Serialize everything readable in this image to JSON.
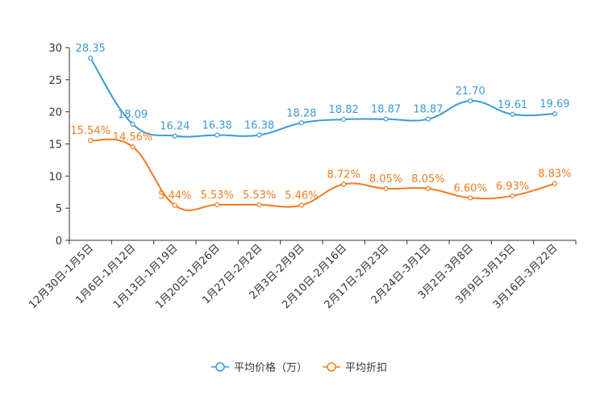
{
  "chart_data": {
    "type": "line",
    "categories": [
      "12月30日-1月5日",
      "1月6日-1月12日",
      "1月13日-1月19日",
      "1月20日-1月26日",
      "1月27日-2月2日",
      "2月3日-2月9日",
      "2月10日-2月16日",
      "2月17日-2月23日",
      "2月24日-3月1日",
      "3月2日-3月8日",
      "3月9日-3月15日",
      "3月16日-3月22日"
    ],
    "yticks": [
      "0",
      "5",
      "10",
      "15",
      "20",
      "25",
      "30"
    ],
    "ylim": [
      0,
      30
    ],
    "series": [
      {
        "name": "平均价格（万）",
        "color": "#3a9ad9",
        "values": [
          28.35,
          18.09,
          16.24,
          16.38,
          16.38,
          18.28,
          18.82,
          18.87,
          18.87,
          21.7,
          19.61,
          19.69
        ],
        "labels": [
          "28.35",
          "18.09",
          "16.24",
          "16.38",
          "16.38",
          "18.28",
          "18.82",
          "18.87",
          "18.87",
          "21.70",
          "19.61",
          "19.69"
        ]
      },
      {
        "name": "平均折扣",
        "color": "#f37b1d",
        "values": [
          15.54,
          14.56,
          5.44,
          5.53,
          5.53,
          5.46,
          8.72,
          8.05,
          8.05,
          6.6,
          6.93,
          8.83
        ],
        "labels": [
          "15.54%",
          "14.56%",
          "5.44%",
          "5.53%",
          "5.53%",
          "5.46%",
          "8.72%",
          "8.05%",
          "8.05%",
          "6.60%",
          "6.93%",
          "8.83%"
        ]
      }
    ],
    "legend_position": "bottom-center"
  }
}
